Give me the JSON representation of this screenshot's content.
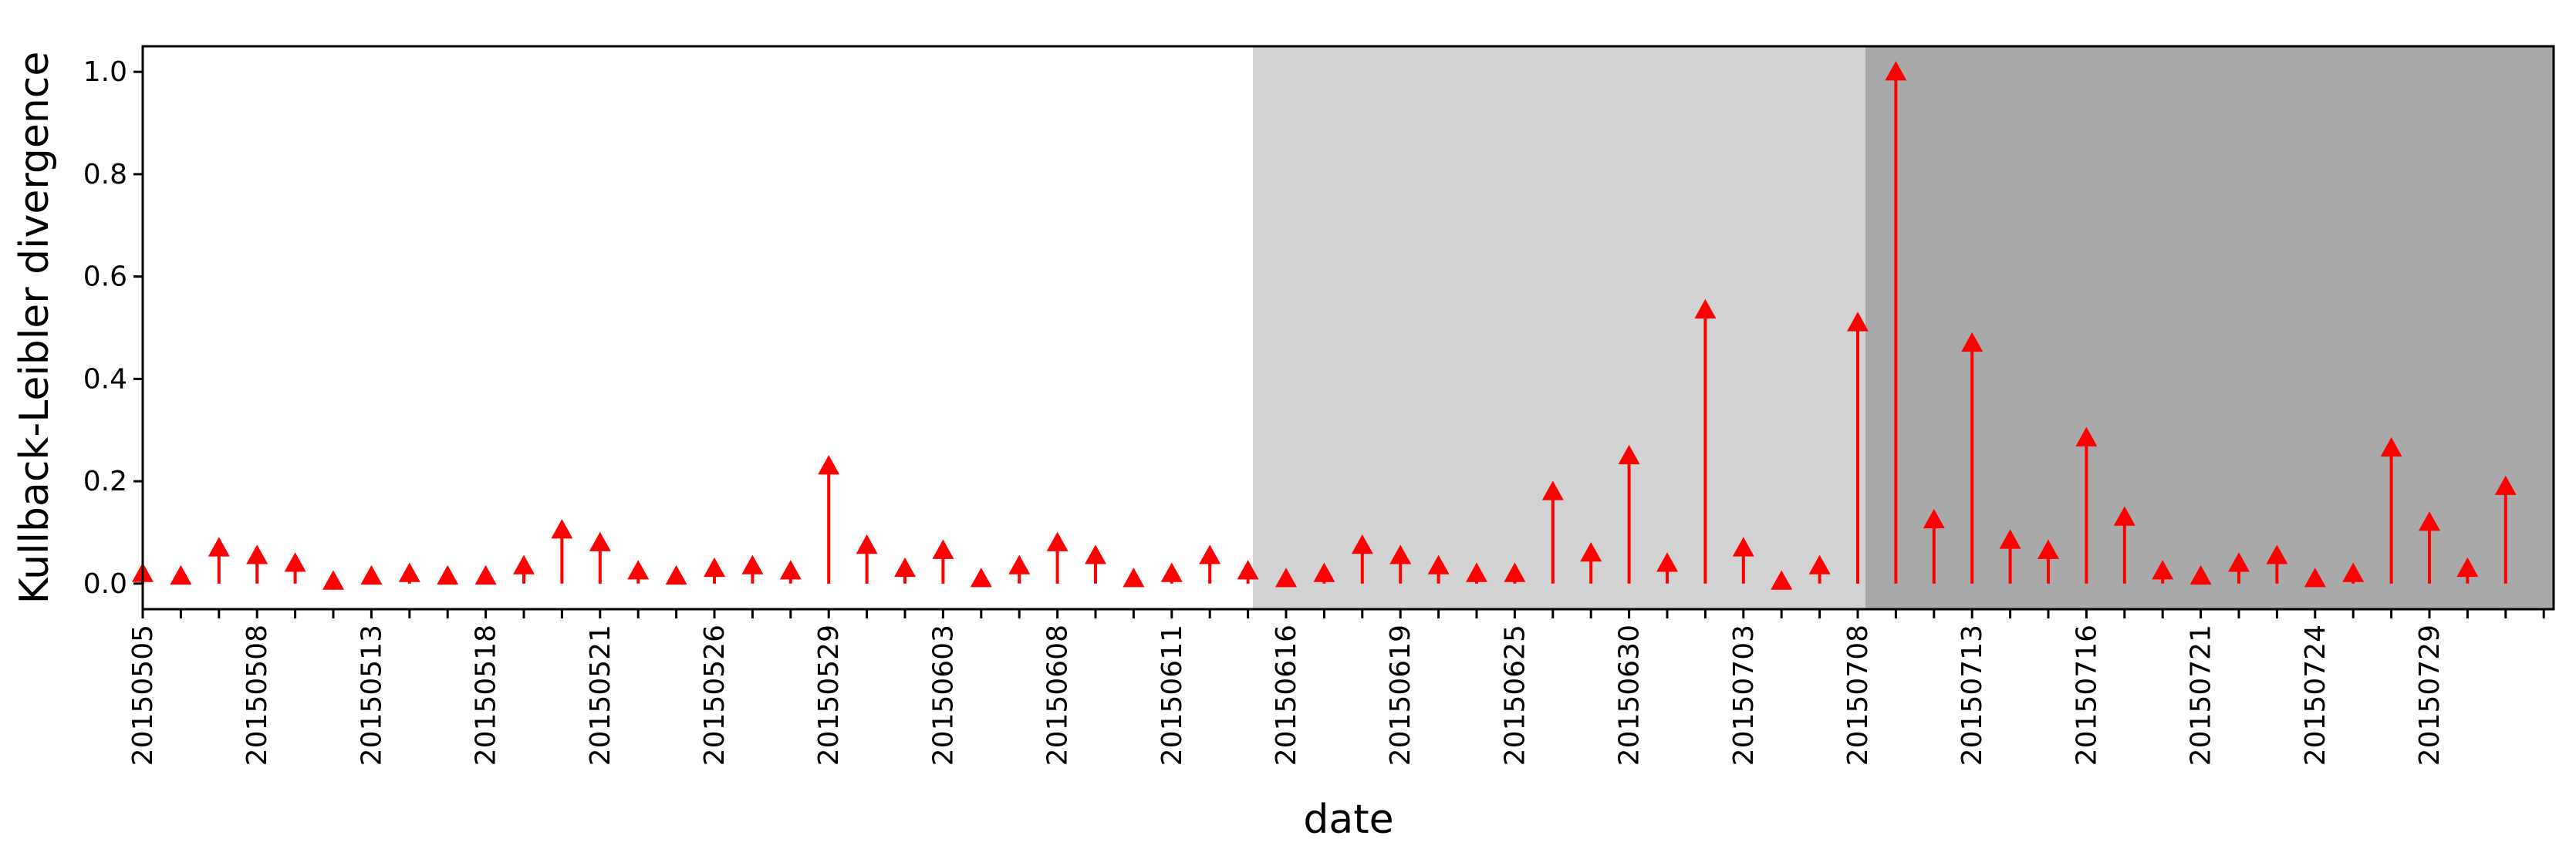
{
  "chart_data": {
    "type": "stem",
    "xlabel": "date",
    "ylabel": "Kullback-Leibler divergence",
    "ylim": [
      -0.05,
      1.05
    ],
    "yticks": [
      "0.0",
      "0.2",
      "0.4",
      "0.6",
      "0.8",
      "1.0"
    ],
    "xtick_labels": [
      "20150505",
      "20150508",
      "20150513",
      "20150518",
      "20150521",
      "20150526",
      "20150529",
      "20150603",
      "20150608",
      "20150611",
      "20150616",
      "20150619",
      "20150625",
      "20150630",
      "20150703",
      "20150708",
      "20150713",
      "20150716",
      "20150721",
      "20150724",
      "20150729"
    ],
    "shaded_regions": [
      {
        "from": "20150614",
        "to": "20150708",
        "color": "#d3d3d3"
      },
      {
        "from": "20150708",
        "to": "end",
        "color": "#a9a9a9"
      }
    ],
    "marker_color": "#ff0000",
    "values": [
      0.02,
      0.015,
      0.07,
      0.055,
      0.04,
      0.005,
      0.015,
      0.02,
      0.015,
      0.015,
      0.035,
      0.105,
      0.08,
      0.025,
      0.015,
      0.03,
      0.035,
      0.025,
      0.23,
      0.075,
      0.03,
      0.065,
      0.01,
      0.035,
      0.08,
      0.055,
      0.01,
      0.02,
      0.055,
      0.025,
      0.01,
      0.02,
      0.075,
      0.055,
      0.035,
      0.02,
      0.02,
      0.18,
      0.06,
      0.25,
      0.04,
      0.535,
      0.07,
      0.005,
      0.035,
      0.51,
      1.0,
      0.125,
      0.47,
      0.085,
      0.065,
      0.285,
      0.13,
      0.025,
      0.015,
      0.04,
      0.055,
      0.01,
      0.02,
      0.265,
      0.12,
      0.03,
      0.19
    ]
  }
}
